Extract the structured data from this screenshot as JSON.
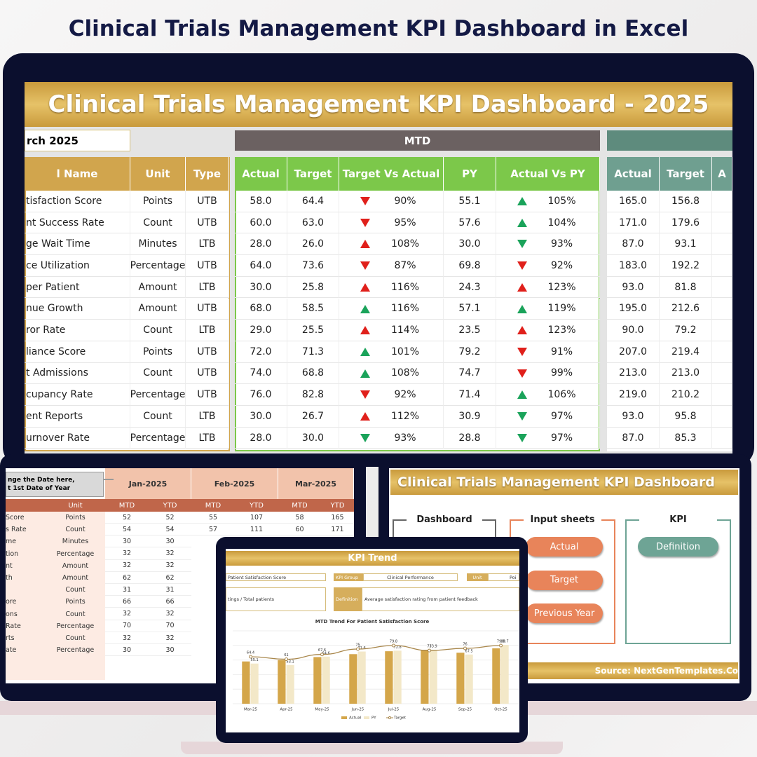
{
  "page_title": "Clinical Trials Management KPI Dashboard in Excel",
  "main": {
    "banner": "Clinical Trials Management KPI Dashboard - 2025",
    "month": "rch 2025",
    "mtd_label": "MTD",
    "headers_left": [
      "l Name",
      "Unit",
      "Type"
    ],
    "headers_mtd": [
      "Actual",
      "Target",
      "Target Vs Actual",
      "PY",
      "Actual Vs PY"
    ],
    "headers_ytd": [
      "Actual",
      "Target",
      "A"
    ],
    "higher_is_better": {
      "UTB": true,
      "LTB": false
    },
    "arrow_colors": {
      "good": "#1aa35a",
      "bad": "#e0201b"
    },
    "rows": [
      {
        "name": "tisfaction Score",
        "unit": "Points",
        "type": "UTB",
        "actual": "58.0",
        "target": "64.4",
        "tva": "90%",
        "py": "55.1",
        "avpy": "105%",
        "ytd_actual": "165.0",
        "ytd_target": "156.8"
      },
      {
        "name": "nt Success Rate",
        "unit": "Count",
        "type": "UTB",
        "actual": "60.0",
        "target": "63.0",
        "tva": "95%",
        "py": "57.6",
        "avpy": "104%",
        "ytd_actual": "171.0",
        "ytd_target": "179.6"
      },
      {
        "name": "ge Wait Time",
        "unit": "Minutes",
        "type": "LTB",
        "actual": "28.0",
        "target": "26.0",
        "tva": "108%",
        "py": "30.0",
        "avpy": "93%",
        "ytd_actual": "87.0",
        "ytd_target": "93.1"
      },
      {
        "name": "ce Utilization",
        "unit": "Percentage",
        "type": "UTB",
        "actual": "64.0",
        "target": "73.6",
        "tva": "87%",
        "py": "69.8",
        "avpy": "92%",
        "ytd_actual": "183.0",
        "ytd_target": "192.2"
      },
      {
        "name": "per Patient",
        "unit": "Amount",
        "type": "LTB",
        "actual": "30.0",
        "target": "25.8",
        "tva": "116%",
        "py": "24.3",
        "avpy": "123%",
        "ytd_actual": "93.0",
        "ytd_target": "81.8"
      },
      {
        "name": "nue Growth",
        "unit": "Amount",
        "type": "UTB",
        "actual": "68.0",
        "target": "58.5",
        "tva": "116%",
        "py": "57.1",
        "avpy": "119%",
        "ytd_actual": "195.0",
        "ytd_target": "212.6"
      },
      {
        "name": "ror Rate",
        "unit": "Count",
        "type": "LTB",
        "actual": "29.0",
        "target": "25.5",
        "tva": "114%",
        "py": "23.5",
        "avpy": "123%",
        "ytd_actual": "90.0",
        "ytd_target": "79.2"
      },
      {
        "name": "liance Score",
        "unit": "Points",
        "type": "UTB",
        "actual": "72.0",
        "target": "71.3",
        "tva": "101%",
        "py": "79.2",
        "avpy": "91%",
        "ytd_actual": "207.0",
        "ytd_target": "219.4"
      },
      {
        "name": "t Admissions",
        "unit": "Count",
        "type": "UTB",
        "actual": "74.0",
        "target": "68.8",
        "tva": "108%",
        "py": "74.7",
        "avpy": "99%",
        "ytd_actual": "213.0",
        "ytd_target": "213.0"
      },
      {
        "name": "cupancy Rate",
        "unit": "Percentage",
        "type": "UTB",
        "actual": "76.0",
        "target": "82.8",
        "tva": "92%",
        "py": "71.4",
        "avpy": "106%",
        "ytd_actual": "219.0",
        "ytd_target": "210.2"
      },
      {
        "name": "ent Reports",
        "unit": "Count",
        "type": "LTB",
        "actual": "30.0",
        "target": "26.7",
        "tva": "112%",
        "py": "30.9",
        "avpy": "97%",
        "ytd_actual": "93.0",
        "ytd_target": "95.8"
      },
      {
        "name": "urnover Rate",
        "unit": "Percentage",
        "type": "LTB",
        "actual": "28.0",
        "target": "30.0",
        "tva": "93%",
        "py": "28.8",
        "avpy": "97%",
        "ytd_actual": "87.0",
        "ytd_target": "85.3"
      }
    ]
  },
  "sheet": {
    "note": "nge the Date here,\nt 1st Date of Year",
    "months": [
      "Jan-2025",
      "Feb-2025",
      "Mar-2025"
    ],
    "unit_header": "Unit",
    "sub_headers": [
      "MTD",
      "YTD",
      "MTD",
      "YTD",
      "MTD",
      "YTD"
    ],
    "rows": [
      {
        "name": "Score",
        "unit": "Points",
        "values": [
          "52",
          "52",
          "55",
          "107",
          "58",
          "165"
        ]
      },
      {
        "name": "s Rate",
        "unit": "Count",
        "values": [
          "54",
          "54",
          "57",
          "111",
          "60",
          "171"
        ]
      },
      {
        "name": "me",
        "unit": "Minutes",
        "values": [
          "30",
          "30"
        ]
      },
      {
        "name": "tion",
        "unit": "Percentage",
        "values": [
          "32",
          "32"
        ]
      },
      {
        "name": "nt",
        "unit": "Amount",
        "values": [
          "32",
          "32"
        ]
      },
      {
        "name": "th",
        "unit": "Amount",
        "values": [
          "62",
          "62"
        ]
      },
      {
        "unit": "Count",
        "values": [
          "31",
          "31"
        ]
      },
      {
        "name": "ore",
        "unit": "Points",
        "values": [
          "66",
          "66"
        ]
      },
      {
        "name": "ons",
        "unit": "Count",
        "values": [
          "32",
          "32"
        ]
      },
      {
        "name": "Rate",
        "unit": "Percentage",
        "values": [
          "70",
          "70"
        ]
      },
      {
        "name": "rts",
        "unit": "Count",
        "values": [
          "32",
          "32"
        ]
      },
      {
        "name": "ate",
        "unit": "Percentage",
        "values": [
          "30",
          "30"
        ]
      }
    ]
  },
  "home": {
    "banner": "Clinical Trials Management KPI Dashboard",
    "groups": [
      "Dashboard",
      "Input sheets",
      "KPI"
    ],
    "input_buttons": [
      "Actual",
      "Target",
      "Previous Year"
    ],
    "kpi_button": "Definition",
    "source": "Source: NextGenTemplates.Co"
  },
  "trend": {
    "banner": "KPI Trend",
    "kpi_name": "Patient Satisfaction Score",
    "group_label": "KPI Group",
    "group_value": "Clinical Performance",
    "unit_label": "Unit",
    "unit_value": "Poi",
    "formula": "tings / Total patients",
    "definition_label": "Definition",
    "definition": "Average satisfaction rating from patient feedback",
    "chart_data": {
      "type": "bar",
      "title": "MTD Trend For Patient Satisfaction Score",
      "categories": [
        "Mar-25",
        "Apr-25",
        "May-25",
        "Jun-25",
        "Jul-25",
        "Aug-25",
        "Sep-25",
        "Oct-25"
      ],
      "ylim": [
        0,
        100
      ],
      "series": [
        {
          "name": "Actual",
          "color": "#d4a64a",
          "values": [
            58,
            60,
            64,
            68,
            72,
            74,
            70,
            76
          ]
        },
        {
          "name": "PY",
          "color": "#f3e8c8",
          "values": [
            55.1,
            53.1,
            64.6,
            71.6,
            72.8,
            73.9,
            67.5,
            80.7
          ]
        },
        {
          "name": "Target",
          "color": "#a8864a",
          "values": [
            64.4,
            61.0,
            67.6,
            75.0,
            79.8,
            73.0,
            76.0,
            79.8
          ]
        }
      ]
    }
  }
}
